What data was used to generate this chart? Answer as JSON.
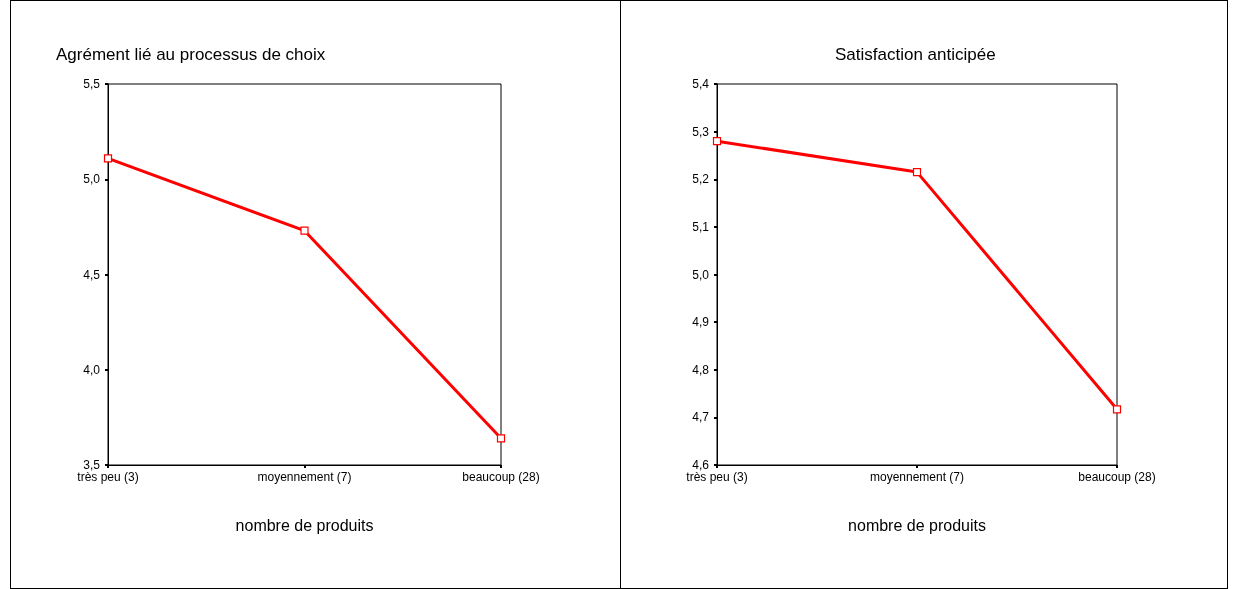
{
  "chart_data": [
    {
      "type": "line",
      "title": "Agrément lié au processus de choix",
      "xlabel": "nombre de produits",
      "categories": [
        "très peu (3)",
        "moyennement (7)",
        "beaucoup (28)"
      ],
      "values": [
        5.11,
        4.73,
        3.64
      ],
      "color": "#ff0000",
      "marker": "square",
      "ylim": [
        3.5,
        5.5
      ],
      "yticks": [
        {
          "value": 3.5,
          "label": "3,5"
        },
        {
          "value": 4.0,
          "label": "4,0"
        },
        {
          "value": 4.5,
          "label": "4,5"
        },
        {
          "value": 5.0,
          "label": "5,0"
        },
        {
          "value": 5.5,
          "label": "5,5"
        }
      ]
    },
    {
      "type": "line",
      "title": "Satisfaction anticipée",
      "xlabel": "nombre de produits",
      "categories": [
        "très peu (3)",
        "moyennement (7)",
        "beaucoup (28)"
      ],
      "values": [
        5.28,
        5.215,
        4.717
      ],
      "color": "#ff0000",
      "marker": "square",
      "ylim": [
        4.6,
        5.4
      ],
      "yticks": [
        {
          "value": 4.6,
          "label": "4,6"
        },
        {
          "value": 4.7,
          "label": "4,7"
        },
        {
          "value": 4.8,
          "label": "4,8"
        },
        {
          "value": 4.9,
          "label": "4,9"
        },
        {
          "value": 5.0,
          "label": "5,0"
        },
        {
          "value": 5.1,
          "label": "5,1"
        },
        {
          "value": 5.2,
          "label": "5,2"
        },
        {
          "value": 5.3,
          "label": "5,3"
        },
        {
          "value": 5.4,
          "label": "5,4"
        }
      ]
    }
  ]
}
